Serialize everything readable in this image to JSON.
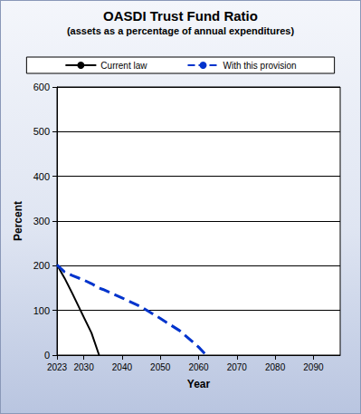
{
  "chart_data": {
    "type": "line",
    "title": "OASDI Trust Fund Ratio",
    "subtitle": "(assets as a percentage of annual expenditures)",
    "x_label": "Year",
    "y_label": "Percent",
    "x": [
      2023,
      2025,
      2027,
      2030,
      2032,
      2034,
      2035,
      2040,
      2045,
      2050,
      2055,
      2060,
      2062
    ],
    "series": [
      {
        "name": "Current law",
        "color": "#000000",
        "line_style": "solid",
        "values": [
          202,
          172,
          138,
          85,
          50,
          0,
          null,
          null,
          null,
          null,
          null,
          null,
          null
        ]
      },
      {
        "name": "With this provision",
        "color": "#0033cc",
        "line_style": "dashed",
        "values": [
          202,
          186,
          178,
          168,
          160,
          150,
          147,
          128,
          108,
          82,
          55,
          18,
          0
        ]
      }
    ],
    "xlim": [
      2023,
      2097
    ],
    "xticks": [
      2023,
      2030,
      2040,
      2050,
      2060,
      2070,
      2080,
      2090
    ],
    "ylim": [
      0,
      600
    ],
    "yticks": [
      0,
      100,
      200,
      300,
      400,
      500,
      600
    ],
    "grid": true,
    "legend": "top"
  }
}
